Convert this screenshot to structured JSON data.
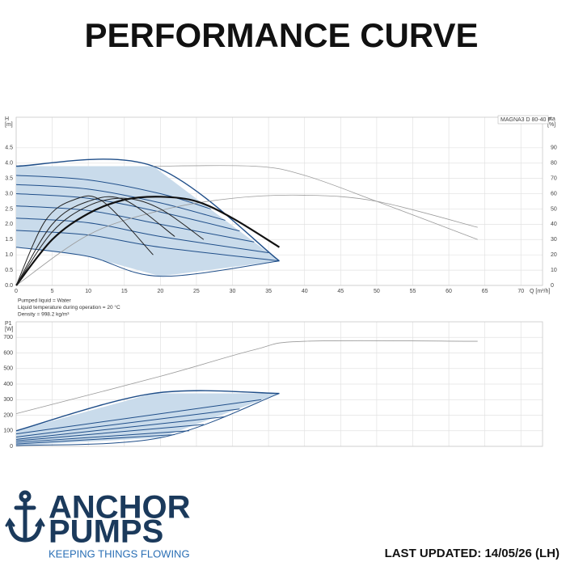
{
  "header": {
    "title": "PERFORMANCE CURVE"
  },
  "footer": {
    "brand": [
      "ANCHOR",
      "PUMPS"
    ],
    "tagline": "KEEPING THINGS FLOWING",
    "updated": "LAST UPDATED: 14/05/26 (LH)"
  },
  "chart_data": [
    {
      "type": "line",
      "ylabel": [
        "H",
        "[m]"
      ],
      "y2label": [
        "eta",
        "[%]"
      ],
      "xlabel": "Q [m³/h]",
      "annotations": [
        "MAGNA3 D 80-40 F"
      ],
      "notes": [
        "Pumped liquid = Water",
        "Liquid temperature during operation = 20 °C",
        "Density = 998.2 kg/m³"
      ],
      "xlim": [
        0,
        73
      ],
      "xticks": [
        0,
        5,
        10,
        15,
        20,
        25,
        30,
        35,
        40,
        45,
        50,
        55,
        60,
        65,
        70
      ],
      "ylim": [
        0,
        5.5
      ],
      "yticks": [
        {
          "value": 0,
          "label": "0.0"
        },
        {
          "value": 0.5,
          "label": "0.5"
        },
        {
          "value": 1,
          "label": "1.0"
        },
        {
          "value": 1.5,
          "label": "1.5"
        },
        {
          "value": 2,
          "label": "2.0"
        },
        {
          "value": 2.5,
          "label": "2.5"
        },
        {
          "value": 3,
          "label": "3.0"
        },
        {
          "value": 3.5,
          "label": "3.5"
        },
        {
          "value": 4,
          "label": "4.0"
        },
        {
          "value": 4.5,
          "label": "4.5"
        }
      ],
      "y2lim": [
        0,
        110
      ],
      "y2ticks": [
        0,
        10,
        20,
        30,
        40,
        50,
        60,
        70,
        80,
        90
      ],
      "grid": true,
      "xtick_labels": true,
      "band_color": "#c9dbeb",
      "series": [
        {
          "color": "#1f4e89",
          "width": 1.4,
          "band": "top",
          "x": [
            0,
            19,
            36.5
          ],
          "values": [
            3.9,
            3.9,
            0.8
          ]
        },
        {
          "color": "#1f4e89",
          "width": 1,
          "x": [
            0,
            10,
            20,
            27
          ],
          "values": [
            3.6,
            3.45,
            3.0,
            2.5
          ]
        },
        {
          "color": "#1f4e89",
          "width": 1,
          "x": [
            0,
            10,
            20,
            29
          ],
          "values": [
            3.3,
            3.15,
            2.7,
            2.13
          ]
        },
        {
          "color": "#1f4e89",
          "width": 1,
          "x": [
            0,
            10,
            20,
            31
          ],
          "values": [
            3.0,
            2.85,
            2.4,
            1.78
          ]
        },
        {
          "color": "#1f4e89",
          "width": 1,
          "x": [
            0,
            10,
            20,
            33
          ],
          "values": [
            2.6,
            2.45,
            2.0,
            1.42
          ]
        },
        {
          "color": "#1f4e89",
          "width": 1,
          "x": [
            0,
            10,
            20,
            35
          ],
          "values": [
            2.2,
            2.05,
            1.6,
            1.07
          ]
        },
        {
          "color": "#1f4e89",
          "width": 1,
          "x": [
            0,
            10,
            20,
            36.5
          ],
          "values": [
            1.8,
            1.65,
            1.25,
            0.8
          ]
        },
        {
          "color": "#1f4e89",
          "width": 1,
          "band": "bottom",
          "x": [
            0,
            10,
            20,
            36.5
          ],
          "values": [
            1.25,
            0.95,
            0.3,
            0.8
          ]
        },
        {
          "color": "#9a9a9a",
          "width": 0.8,
          "x": [
            19,
            33,
            40,
            50,
            64
          ],
          "values": [
            3.9,
            3.9,
            3.6,
            2.75,
            1.5
          ]
        },
        {
          "color": "#9a9a9a",
          "width": 0.8,
          "axis": "y2",
          "x": [
            0,
            10,
            20,
            30,
            40,
            50,
            64
          ],
          "values": [
            0,
            33,
            49,
            57,
            59,
            55,
            38
          ]
        },
        {
          "color": "#111111",
          "width": 2.2,
          "axis": "y2",
          "x": [
            0,
            5,
            10,
            15,
            20,
            25,
            30,
            36.5
          ],
          "values": [
            0,
            30,
            47,
            56,
            58,
            55,
            44,
            25
          ]
        },
        {
          "color": "#222222",
          "width": 1,
          "axis": "y2",
          "x": [
            0,
            5,
            10,
            15,
            20,
            26
          ],
          "values": [
            0,
            35,
            52,
            57,
            50,
            30
          ]
        },
        {
          "color": "#222222",
          "width": 1,
          "axis": "y2",
          "x": [
            0,
            5,
            10,
            15,
            22
          ],
          "values": [
            0,
            40,
            55,
            56,
            32
          ]
        },
        {
          "color": "#222222",
          "width": 1,
          "axis": "y2",
          "x": [
            0,
            4,
            8,
            12,
            19
          ],
          "values": [
            0,
            42,
            56,
            55,
            20
          ]
        }
      ]
    },
    {
      "type": "line",
      "ylabel": [
        "P1",
        "[W]"
      ],
      "xlim": [
        0,
        73
      ],
      "xticks": [
        0,
        5,
        10,
        15,
        20,
        25,
        30,
        35,
        40,
        45,
        50,
        55,
        60,
        65,
        70
      ],
      "ylim": [
        0,
        800
      ],
      "yticks": [
        0,
        100,
        200,
        300,
        400,
        500,
        600,
        700
      ],
      "grid": true,
      "xtick_labels": false,
      "band_color": "#c9dbeb",
      "series": [
        {
          "color": "#1f4e89",
          "width": 1.4,
          "band": "top",
          "x": [
            0,
            19,
            36.5
          ],
          "values": [
            100,
            340,
            340
          ]
        },
        {
          "color": "#1f4e89",
          "width": 1,
          "x": [
            0,
            34
          ],
          "values": [
            80,
            300
          ]
        },
        {
          "color": "#1f4e89",
          "width": 1,
          "x": [
            0,
            31
          ],
          "values": [
            60,
            240
          ]
        },
        {
          "color": "#1f4e89",
          "width": 1,
          "x": [
            0,
            29
          ],
          "values": [
            45,
            190
          ]
        },
        {
          "color": "#1f4e89",
          "width": 1,
          "x": [
            0,
            26
          ],
          "values": [
            35,
            140
          ]
        },
        {
          "color": "#1f4e89",
          "width": 1,
          "x": [
            0,
            24
          ],
          "values": [
            25,
            100
          ]
        },
        {
          "color": "#1f4e89",
          "width": 1,
          "x": [
            0,
            22
          ],
          "values": [
            15,
            75
          ]
        },
        {
          "color": "#1f4e89",
          "width": 1,
          "band": "bottom",
          "x": [
            0,
            20,
            36.5
          ],
          "values": [
            5,
            55,
            340
          ]
        },
        {
          "color": "#9a9a9a",
          "width": 0.8,
          "x": [
            0,
            20,
            33,
            40,
            64
          ],
          "values": [
            210,
            450,
            620,
            675,
            675
          ]
        }
      ]
    }
  ]
}
